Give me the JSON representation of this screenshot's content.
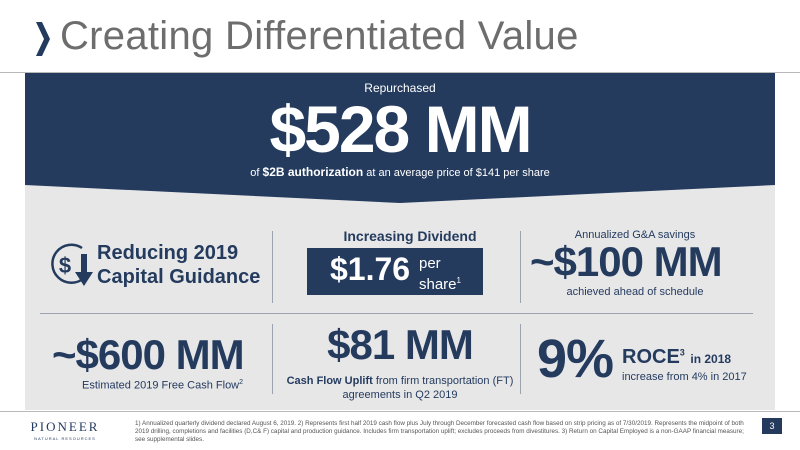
{
  "title": "Creating Differentiated Value",
  "banner": {
    "top_label": "Repurchased",
    "amount": "$528 MM",
    "line_prefix": "of",
    "line_bold": "$2B authorization",
    "line_suffix": "at an average price of $141 per share"
  },
  "capital": {
    "line1": "Reducing 2019",
    "line2": "Capital Guidance"
  },
  "dividend": {
    "heading": "Increasing Dividend",
    "amount": "$1.76",
    "unit_line1": "per",
    "unit_line2": "share",
    "unit_sup": "1"
  },
  "ga": {
    "heading": "Annualized G&A savings",
    "amount": "~$100 MM",
    "note": "achieved ahead of schedule"
  },
  "fcf": {
    "amount": "~$600 MM",
    "note": "Estimated 2019 Free Cash Flow",
    "note_sup": "2"
  },
  "cashflow": {
    "amount": "$81 MM",
    "note_bold": "Cash Flow Uplift",
    "note_rest": "from firm transportation (FT) agreements in Q2 2019"
  },
  "roce": {
    "pct": "9%",
    "label": "ROCE",
    "label_sup": "3",
    "year": "in 2018",
    "note": "increase from 4% in 2017"
  },
  "footer": {
    "logo_name": "PIONEER",
    "logo_sub": "NATURAL RESOURCES",
    "footnote": "1) Annualized quarterly dividend declared August 6, 2019.  2) Represents first half 2019 cash flow plus July through December forecasted cash flow based on strip pricing as of 7/30/2019.  Represents the midpoint of both 2019 drilling, completions and facilities (D,C& F) capital and production guidance.  Includes firm transportation uplift; excludes proceeds from divestitures. 3) Return on Capital Employed is a non-GAAP financial measure; see supplemental slides.",
    "page": "3"
  },
  "colors": {
    "navy": "#243b5e",
    "panel": "#e7e7e8",
    "title_gray": "#6d6d6d"
  },
  "icons": [
    "chevron-right-icon",
    "dollar-down-arrow-icon"
  ]
}
